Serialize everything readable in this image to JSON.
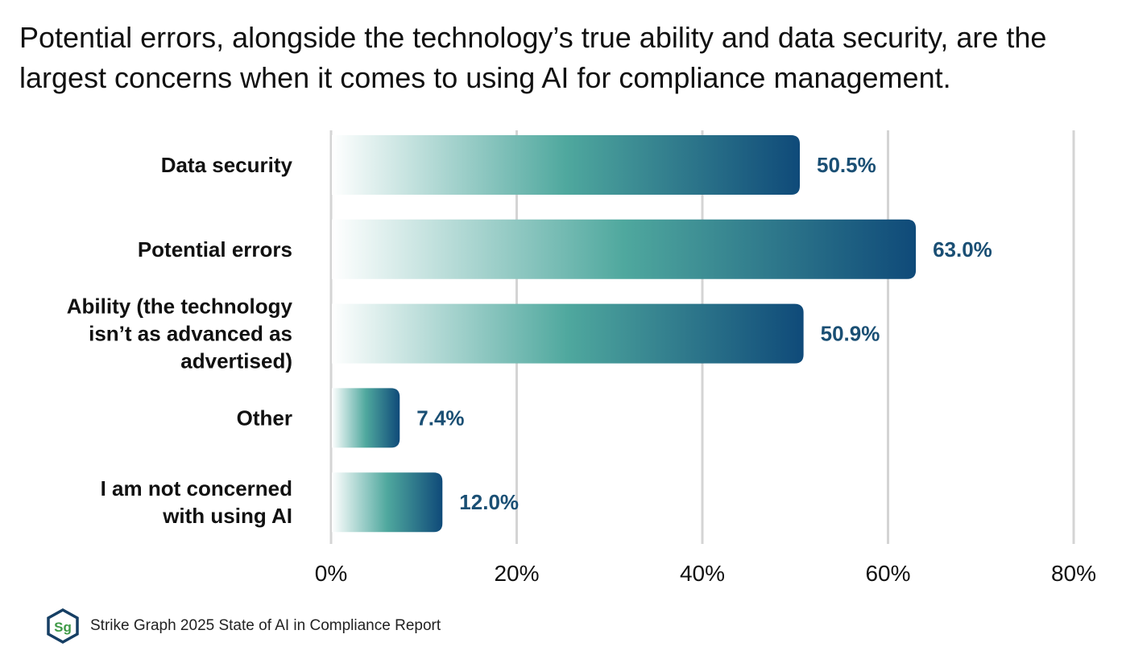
{
  "title": "Potential errors, alongside the technology’s true ability and data security, are the largest concerns when it comes to using AI for compliance management.",
  "colors": {
    "gradient_start": "#ffffff",
    "gradient_mid": "#4fa89e",
    "gradient_end": "#0f4a79",
    "value_label": "#1a4f74",
    "gridline": "#d4d4d4",
    "logo_green": "#3f9a47",
    "logo_navy": "#163f64"
  },
  "chart_data": {
    "type": "bar",
    "orientation": "horizontal",
    "categories": [
      [
        "Data security"
      ],
      [
        "Potential errors"
      ],
      [
        "Ability (the technology",
        "isn’t as advanced as",
        "advertised)"
      ],
      [
        "Other"
      ],
      [
        "I am not concerned",
        "with using AI"
      ]
    ],
    "values": [
      50.5,
      63.0,
      50.9,
      7.4,
      12.0
    ],
    "value_labels": [
      "50.5%",
      "63.0%",
      "50.9%",
      "7.4%",
      "12.0%"
    ],
    "xlim": [
      0,
      80
    ],
    "xticks": [
      0,
      20,
      40,
      60,
      80
    ],
    "xtick_labels": [
      "0%",
      "20%",
      "40%",
      "60%",
      "80%"
    ],
    "grid": true,
    "title": "Potential errors, alongside the technology’s true ability and data security, are the largest concerns when it comes to using AI for compliance management."
  },
  "footer": {
    "logo_text": "Sg",
    "source": "Strike Graph 2025 State of AI in Compliance Report"
  }
}
